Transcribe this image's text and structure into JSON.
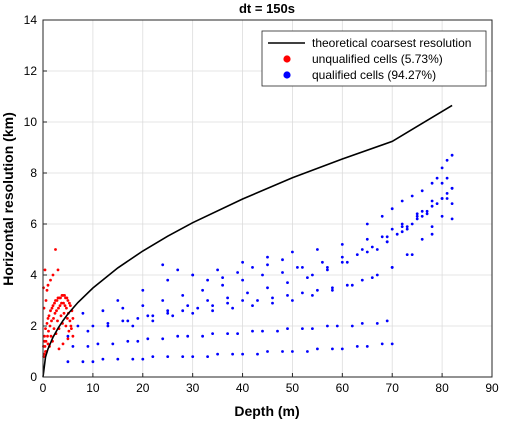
{
  "chart_data": {
    "type": "scatter",
    "title": "dt = 150s",
    "xlabel": "Depth (m)",
    "ylabel": "Horizontal resolution (km)",
    "xlim": [
      0,
      90
    ],
    "ylim": [
      0,
      14
    ],
    "x_ticks": [
      "0",
      "10",
      "20",
      "30",
      "40",
      "50",
      "60",
      "70",
      "80",
      "90"
    ],
    "y_ticks": [
      "0",
      "2",
      "4",
      "6",
      "8",
      "10",
      "12",
      "14"
    ],
    "grid": true,
    "legend_position": "top-right",
    "colors": {
      "theoretical": "#000000",
      "unqualified": "#ff0000",
      "qualified": "#0000ff"
    },
    "series": [
      {
        "name": "theoretical coarsest resolution",
        "kind": "line",
        "x": [
          0,
          0.5,
          1,
          2,
          3,
          4,
          5,
          7,
          10,
          15,
          20,
          25,
          30,
          40,
          50,
          60,
          70,
          82
        ],
        "y": [
          0,
          0.78,
          1.1,
          1.56,
          1.91,
          2.21,
          2.47,
          2.92,
          3.49,
          4.28,
          4.94,
          5.52,
          6.05,
          6.98,
          7.81,
          8.55,
          9.24,
          10.65
        ]
      },
      {
        "name": "unqualified cells (5.73%)",
        "kind": "points",
        "x": [
          0.1,
          0.3,
          0.5,
          0.8,
          1.0,
          1.2,
          1.5,
          1.8,
          2.0,
          2.3,
          2.5,
          2.8,
          3.0,
          3.3,
          3.5,
          3.8,
          4.0,
          4.3,
          4.5,
          4.8,
          5.0,
          5.3,
          5.5,
          5.8,
          6.0,
          0.2,
          0.4,
          0.6,
          0.9,
          1.1,
          1.4,
          1.7,
          2.1,
          2.4,
          2.7,
          3.1,
          3.4,
          3.7,
          4.1,
          4.4,
          4.7,
          5.1,
          5.4,
          5.7,
          0.15,
          0.5,
          1.0,
          1.6,
          2.2,
          2.9,
          3.6,
          4.2,
          4.9,
          5.6,
          0.3,
          0.7,
          1.3,
          1.9,
          2.6,
          3.2,
          3.9,
          4.6,
          5.2,
          0.1,
          0.4,
          0.2,
          0.6,
          0.8,
          1.0,
          1.5,
          2.0,
          3.0,
          2.5,
          0.3,
          3.2,
          4.0,
          5.0,
          6.0
        ],
        "y": [
          1.2,
          1.6,
          1.9,
          2.1,
          2.3,
          2.4,
          2.6,
          2.7,
          2.8,
          2.9,
          3.0,
          3.0,
          3.1,
          3.1,
          3.1,
          3.2,
          3.2,
          3.2,
          3.1,
          3.1,
          3.0,
          2.9,
          2.8,
          2.6,
          2.3,
          0.9,
          1.2,
          1.4,
          1.6,
          1.8,
          2.0,
          2.2,
          2.3,
          2.5,
          2.6,
          2.7,
          2.8,
          2.9,
          2.9,
          2.8,
          2.7,
          2.5,
          2.2,
          1.9,
          0.8,
          1.0,
          1.3,
          1.6,
          1.9,
          2.2,
          2.4,
          2.5,
          2.3,
          2.0,
          0.9,
          1.0,
          1.2,
          1.4,
          1.7,
          1.9,
          2.1,
          2.0,
          1.8,
          3.5,
          4.2,
          2.7,
          3.0,
          3.4,
          3.6,
          3.8,
          4.0,
          4.2,
          5.0,
          1.4,
          1.1,
          1.3,
          1.5,
          1.6
        ]
      },
      {
        "name": "qualified cells (94.27%)",
        "kind": "points",
        "x": [
          5,
          8,
          10,
          12,
          15,
          18,
          20,
          22,
          25,
          28,
          30,
          33,
          35,
          38,
          40,
          43,
          45,
          48,
          50,
          53,
          55,
          58,
          60,
          63,
          65,
          68,
          70,
          6,
          9,
          11,
          14,
          17,
          19,
          21,
          24,
          27,
          29,
          32,
          34,
          37,
          39,
          42,
          44,
          47,
          49,
          52,
          54,
          57,
          59,
          62,
          64,
          67,
          69,
          7,
          10,
          13,
          16,
          19,
          22,
          25,
          28,
          31,
          34,
          37,
          40,
          43,
          46,
          49,
          52,
          55,
          58,
          61,
          64,
          67,
          70,
          73,
          76,
          78,
          80,
          82,
          8,
          12,
          16,
          20,
          24,
          28,
          32,
          36,
          40,
          44,
          48,
          52,
          56,
          60,
          64,
          68,
          72,
          76,
          80,
          82,
          5,
          9,
          13,
          17,
          21,
          25,
          29,
          33,
          37,
          41,
          45,
          49,
          53,
          57,
          61,
          65,
          69,
          73,
          77,
          81,
          15,
          20,
          25,
          30,
          35,
          40,
          45,
          50,
          55,
          60,
          65,
          70,
          75,
          80,
          18,
          22,
          26,
          30,
          34,
          38,
          42,
          46,
          50,
          54,
          58,
          62,
          66,
          70,
          74,
          78,
          82,
          24,
          27,
          30,
          33,
          36,
          39,
          42,
          45,
          48,
          51,
          54,
          57,
          60,
          63,
          66,
          69,
          72,
          75,
          78,
          81,
          65,
          68,
          70,
          72,
          74,
          76,
          78,
          79,
          80,
          81,
          82,
          71,
          73,
          75,
          77,
          79,
          81,
          67,
          69,
          72,
          74,
          76,
          78,
          80,
          82
        ],
        "y": [
          0.6,
          0.6,
          0.6,
          0.7,
          0.7,
          0.7,
          0.7,
          0.8,
          0.8,
          0.8,
          0.8,
          0.8,
          0.9,
          0.9,
          0.9,
          0.9,
          1.0,
          1.0,
          1.0,
          1.0,
          1.1,
          1.1,
          1.1,
          1.2,
          1.2,
          1.3,
          1.3,
          1.2,
          1.2,
          1.3,
          1.3,
          1.4,
          1.4,
          1.5,
          1.5,
          1.6,
          1.6,
          1.6,
          1.7,
          1.7,
          1.7,
          1.8,
          1.8,
          1.8,
          1.9,
          1.9,
          1.9,
          2.0,
          2.0,
          2.0,
          2.1,
          2.1,
          2.2,
          2.0,
          2.0,
          2.1,
          2.2,
          2.3,
          2.4,
          2.5,
          2.6,
          2.7,
          2.8,
          2.9,
          3.0,
          3.0,
          3.1,
          3.2,
          3.3,
          3.4,
          3.5,
          3.6,
          3.8,
          4.0,
          4.3,
          4.8,
          5.4,
          5.9,
          6.3,
          6.8,
          2.5,
          2.6,
          2.7,
          2.8,
          3.0,
          3.2,
          3.4,
          3.6,
          3.8,
          4.0,
          4.1,
          4.3,
          4.5,
          4.7,
          5.0,
          5.5,
          6.0,
          6.5,
          7.0,
          7.4,
          1.6,
          1.8,
          2.0,
          2.2,
          2.4,
          2.6,
          2.8,
          3.0,
          3.1,
          3.3,
          3.5,
          3.7,
          3.9,
          4.2,
          4.5,
          4.9,
          5.3,
          5.8,
          6.4,
          7.0,
          3.0,
          3.4,
          3.8,
          4.0,
          4.2,
          4.5,
          4.7,
          4.9,
          5.0,
          5.2,
          5.4,
          5.8,
          6.4,
          7.6,
          2.0,
          2.2,
          2.4,
          2.5,
          2.6,
          2.7,
          2.8,
          2.9,
          3.0,
          3.2,
          3.4,
          3.6,
          3.9,
          4.3,
          4.8,
          5.6,
          6.2,
          4.4,
          4.2,
          4.0,
          3.8,
          3.9,
          4.1,
          4.3,
          4.4,
          4.6,
          4.3,
          4.0,
          4.3,
          4.5,
          4.8,
          5.1,
          5.5,
          5.9,
          6.3,
          6.9,
          7.8,
          6.0,
          6.3,
          6.6,
          6.9,
          7.1,
          7.3,
          7.6,
          7.8,
          8.2,
          8.5,
          8.7,
          5.6,
          5.9,
          6.2,
          6.5,
          6.8,
          7.2,
          5.0,
          5.3,
          5.7,
          6.0,
          6.3,
          6.7,
          7.0,
          7.4
        ]
      }
    ]
  }
}
